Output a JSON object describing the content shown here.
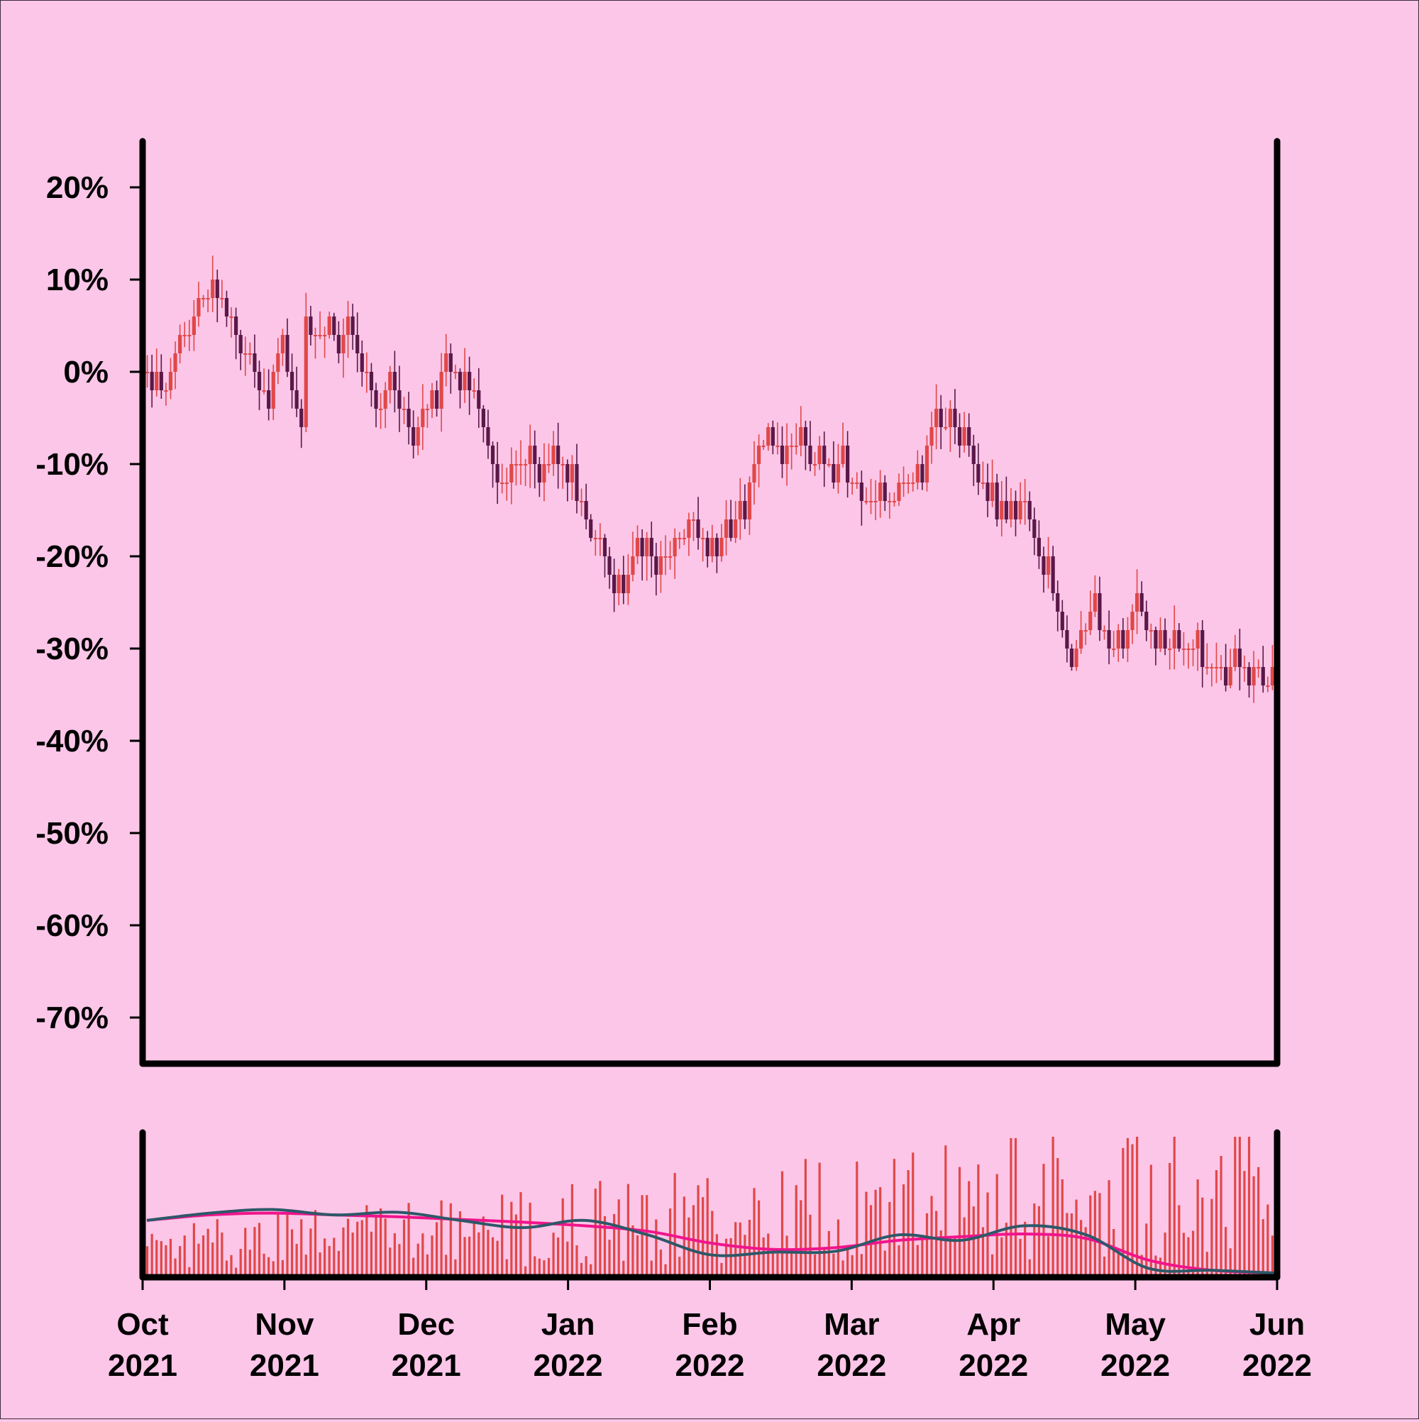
{
  "colors": {
    "background": "#fcc6e8",
    "up_candle": "#e04848",
    "down_candle": "#5a1848",
    "axis": "#000000",
    "volume_bar": "#e04848",
    "ma_fast": "#2e5868",
    "ma_slow": "#f0148c"
  },
  "chart_data": [
    {
      "type": "candlestick",
      "title": "",
      "xlabel": "",
      "ylabel": "",
      "y_unit": "percent change",
      "ylim": [
        -75,
        25
      ],
      "grid": false,
      "legend": "none",
      "y_ticks": [
        20,
        10,
        0,
        -10,
        -20,
        -30,
        -40,
        -50,
        -60,
        -70
      ],
      "y_tick_labels": [
        "20%",
        "10%",
        "0%",
        "-10%",
        "-20%",
        "-30%",
        "-40%",
        "-50%",
        "-60%",
        "-70%"
      ],
      "x_range": [
        "2021-10-01",
        "2022-06-01"
      ],
      "close_anchors": [
        [
          "2021-10-01",
          0
        ],
        [
          "2021-10-05",
          -3
        ],
        [
          "2021-10-09",
          3
        ],
        [
          "2021-10-12",
          5
        ],
        [
          "2021-10-16",
          9
        ],
        [
          "2021-10-20",
          5
        ],
        [
          "2021-10-24",
          1
        ],
        [
          "2021-10-27",
          -3
        ],
        [
          "2021-10-31",
          3
        ],
        [
          "2021-11-04",
          -7
        ],
        [
          "2021-11-05",
          5
        ],
        [
          "2021-11-10",
          4
        ],
        [
          "2021-11-14",
          5
        ],
        [
          "2021-11-20",
          -4
        ],
        [
          "2021-11-24",
          -2
        ],
        [
          "2021-11-28",
          -8
        ],
        [
          "2021-12-04",
          0
        ],
        [
          "2021-12-10",
          0
        ],
        [
          "2021-12-16",
          -12
        ],
        [
          "2021-12-22",
          -10
        ],
        [
          "2021-12-28",
          -9
        ],
        [
          "2022-01-08",
          -20
        ],
        [
          "2022-01-10",
          -25
        ],
        [
          "2022-01-14",
          -21
        ],
        [
          "2022-01-22",
          -21
        ],
        [
          "2022-01-26",
          -16
        ],
        [
          "2022-01-31",
          -21
        ],
        [
          "2022-02-08",
          -12
        ],
        [
          "2022-02-12",
          -7
        ],
        [
          "2022-02-20",
          -9
        ],
        [
          "2022-02-26",
          -10
        ],
        [
          "2022-03-04",
          -13
        ],
        [
          "2022-03-10",
          -15
        ],
        [
          "2022-03-16",
          -11
        ],
        [
          "2022-03-20",
          -5
        ],
        [
          "2022-03-26",
          -7
        ],
        [
          "2022-04-02",
          -16
        ],
        [
          "2022-04-08",
          -14
        ],
        [
          "2022-04-18",
          -32
        ],
        [
          "2022-04-22",
          -26
        ],
        [
          "2022-04-28",
          -31
        ],
        [
          "2022-05-02",
          -24
        ],
        [
          "2022-05-06",
          -30
        ],
        [
          "2022-05-14",
          -30
        ],
        [
          "2022-05-18",
          -33
        ],
        [
          "2022-05-24",
          -31
        ],
        [
          "2022-05-30",
          -34
        ],
        [
          "2022-06-01",
          -30
        ]
      ]
    },
    {
      "type": "bar",
      "title": "",
      "series": [
        {
          "name": "",
          "kind": "volume",
          "values": "daily volume bars, relative scale 0-1"
        },
        {
          "name": "",
          "kind": "moving-average-fast",
          "anchors": [
            0.58,
            0.66,
            0.7,
            0.64,
            0.67,
            0.58,
            0.5,
            0.58,
            0.42,
            0.2,
            0.23,
            0.24,
            0.42,
            0.36,
            0.52,
            0.42,
            0.05,
            0.03,
            0.0
          ]
        },
        {
          "name": "",
          "kind": "moving-average-slow",
          "anchors": [
            0.58,
            0.64,
            0.66,
            0.64,
            0.62,
            0.59,
            0.56,
            0.52,
            0.46,
            0.33,
            0.26,
            0.28,
            0.36,
            0.4,
            0.43,
            0.38,
            0.14,
            0.03,
            0.0
          ]
        }
      ]
    }
  ],
  "x_axis": {
    "ticks": [
      {
        "month": "Oct",
        "year": "2021"
      },
      {
        "month": "Nov",
        "year": "2021"
      },
      {
        "month": "Dec",
        "year": "2021"
      },
      {
        "month": "Jan",
        "year": "2022"
      },
      {
        "month": "Feb",
        "year": "2022"
      },
      {
        "month": "Mar",
        "year": "2022"
      },
      {
        "month": "Apr",
        "year": "2022"
      },
      {
        "month": "May",
        "year": "2022"
      },
      {
        "month": "Jun",
        "year": "2022"
      }
    ]
  }
}
